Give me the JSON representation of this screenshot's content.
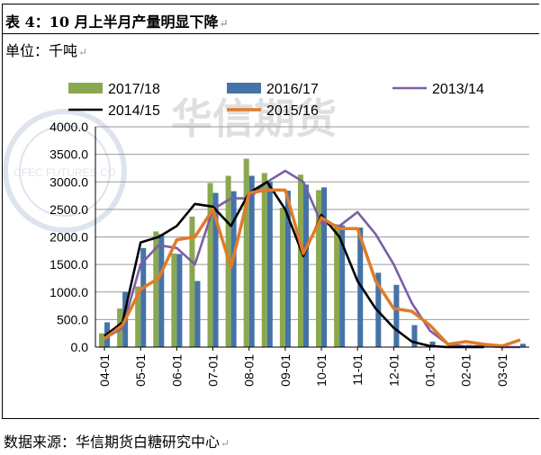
{
  "header": {
    "title": "表 4：10 月上半月产量明显下降",
    "unit": "单位：千吨"
  },
  "footer": {
    "source": "数据来源：华信期货白糖研究中心"
  },
  "watermark": {
    "text": "华信期货",
    "seal_text": "CFEC FUTURES CO"
  },
  "chart_data": {
    "type": "bar",
    "title": "",
    "xlabel": "",
    "ylabel": "",
    "ylim": [
      0,
      4000
    ],
    "yticks": [
      "0.0",
      "500.0",
      "1000.0",
      "1500.0",
      "2000.0",
      "2500.0",
      "3000.0",
      "3500.0",
      "4000.0"
    ],
    "grid": true,
    "legend_position": "top",
    "x_tick_labels": [
      "04-01",
      "05-01",
      "06-01",
      "07-01",
      "08-01",
      "09-01",
      "10-01",
      "11-01",
      "12-01",
      "01-01",
      "02-01",
      "03-01"
    ],
    "bar_series": [
      {
        "name": "2017/18",
        "color": "#8aa84f",
        "values": [
          250,
          700,
          1100,
          2100,
          1700,
          2370,
          2980,
          3110,
          3420,
          3160,
          2530,
          3130,
          2850,
          2200,
          null,
          null,
          null,
          null,
          null,
          null,
          null,
          null,
          null,
          null
        ]
      },
      {
        "name": "2016/17",
        "color": "#4573a7",
        "values": [
          450,
          1000,
          1800,
          2050,
          1690,
          1200,
          2800,
          2830,
          3110,
          3000,
          2840,
          2950,
          2900,
          2210,
          2170,
          1350,
          1130,
          400,
          100,
          30,
          40,
          30,
          20,
          60
        ]
      }
    ],
    "line_series": [
      {
        "name": "2013/14",
        "color": "#7b5ea7",
        "values": [
          150,
          350,
          1500,
          1850,
          1800,
          1500,
          2500,
          2700,
          2700,
          3000,
          3200,
          3000,
          2250,
          2200,
          2450,
          2050,
          1500,
          800,
          300,
          50,
          10,
          20,
          0,
          0
        ]
      },
      {
        "name": "2014/15",
        "color": "#000000",
        "values": [
          200,
          450,
          1900,
          2000,
          2200,
          2600,
          2550,
          2200,
          2800,
          3000,
          2500,
          1650,
          2400,
          2000,
          1200,
          700,
          350,
          100,
          20,
          0,
          0,
          0,
          null,
          null
        ]
      },
      {
        "name": "2015/16",
        "color": "#e07b2a",
        "values": [
          150,
          400,
          1050,
          1250,
          1950,
          2000,
          2500,
          1450,
          2800,
          2850,
          2850,
          1700,
          2350,
          2150,
          2150,
          1200,
          700,
          650,
          400,
          50,
          100,
          50,
          20,
          130
        ]
      }
    ]
  }
}
